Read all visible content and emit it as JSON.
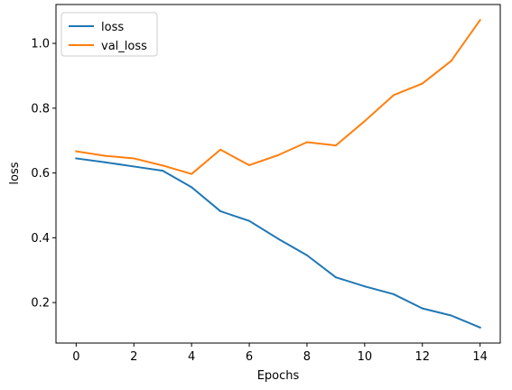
{
  "chart_data": {
    "type": "line",
    "x": [
      0,
      1,
      2,
      3,
      4,
      5,
      6,
      7,
      8,
      9,
      10,
      11,
      12,
      13,
      14
    ],
    "series": [
      {
        "name": "loss",
        "color": "#1f77b4",
        "values": [
          0.645,
          0.633,
          0.62,
          0.607,
          0.556,
          0.482,
          0.452,
          0.397,
          0.346,
          0.278,
          0.25,
          0.226,
          0.182,
          0.16,
          0.123
        ]
      },
      {
        "name": "val_loss",
        "color": "#ff7f0e",
        "values": [
          0.667,
          0.653,
          0.645,
          0.623,
          0.597,
          0.672,
          0.624,
          0.655,
          0.695,
          0.685,
          0.76,
          0.84,
          0.876,
          0.946,
          1.072
        ]
      }
    ],
    "xlabel": "Epochs",
    "ylabel": "loss",
    "xlim": [
      -0.7,
      14.7
    ],
    "ylim": [
      0.075,
      1.12
    ],
    "xticks": [
      0,
      2,
      4,
      6,
      8,
      10,
      12,
      14
    ],
    "yticks": [
      0.2,
      0.4,
      0.6,
      0.8,
      1.0
    ],
    "ytick_labels": [
      "0.2",
      "0.4",
      "0.6",
      "0.8",
      "1.0"
    ],
    "grid": false,
    "legend_position": "top-left"
  }
}
